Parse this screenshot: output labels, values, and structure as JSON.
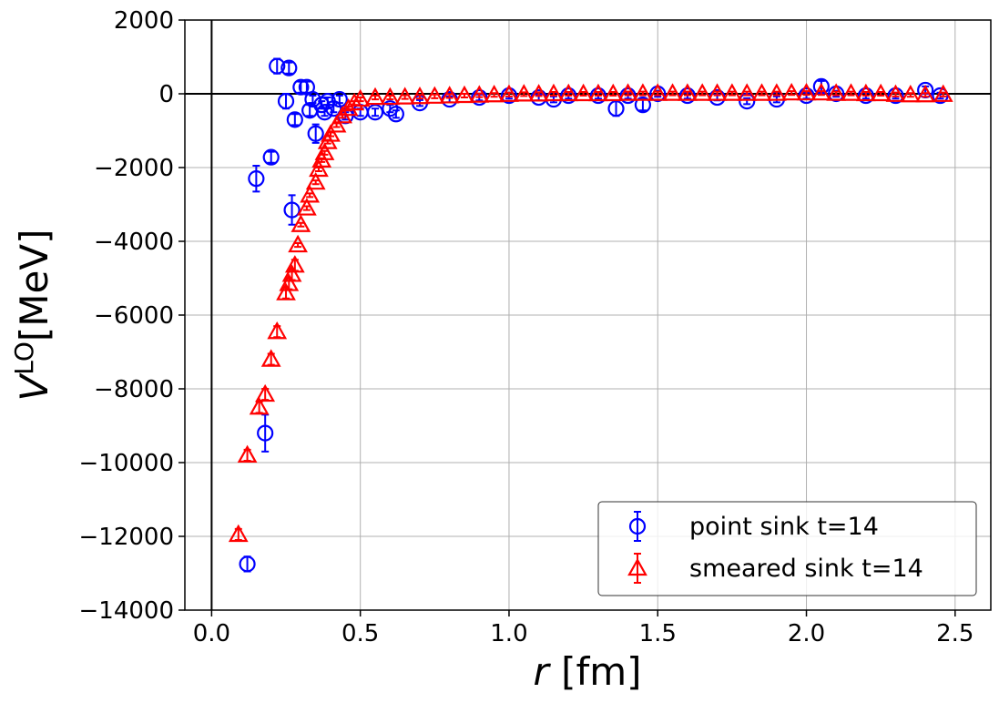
{
  "chart_data": {
    "type": "errorbar_scatter",
    "xlabel": {
      "symbol": "r",
      "unit": "[fm]"
    },
    "ylabel": {
      "symbol": "V",
      "superscript": "LO",
      "unit": "[MeV]"
    },
    "xlim": [
      -0.09,
      2.62
    ],
    "ylim": [
      -14000,
      2000
    ],
    "xticks": [
      {
        "value": 0,
        "label": "0.0"
      },
      0.5,
      {
        "value": 1,
        "label": "1.0"
      },
      1.5,
      {
        "value": 2,
        "label": "2.0"
      },
      2.5
    ],
    "yticks": [
      {
        "value": -14000,
        "label": "−14000"
      },
      {
        "value": -12000,
        "label": "−12000"
      },
      {
        "value": -10000,
        "label": "−10000"
      },
      {
        "value": -8000,
        "label": "−8000"
      },
      {
        "value": -6000,
        "label": "−6000"
      },
      {
        "value": -4000,
        "label": "−4000"
      },
      {
        "value": -2000,
        "label": "−2000"
      },
      0,
      2000
    ],
    "grid": true,
    "zero_lines": true,
    "legend": "lower right",
    "series": [
      {
        "name": "point sink t=14",
        "color": "#0000ff",
        "marker": "circle",
        "x": [
          0.12,
          0.15,
          0.18,
          0.2,
          0.22,
          0.25,
          0.26,
          0.27,
          0.28,
          0.3,
          0.32,
          0.33,
          0.34,
          0.35,
          0.37,
          0.38,
          0.39,
          0.41,
          0.43,
          0.45,
          0.5,
          0.55,
          0.6,
          0.62,
          0.7,
          0.8,
          0.9,
          1.0,
          1.1,
          1.15,
          1.2,
          1.3,
          1.36,
          1.4,
          1.45,
          1.5,
          1.6,
          1.7,
          1.8,
          1.9,
          2.0,
          2.05,
          2.1,
          2.2,
          2.3,
          2.4,
          2.45
        ],
        "values": [
          -12750,
          -2300,
          -9200,
          -1720,
          750,
          -200,
          700,
          -3150,
          -700,
          180,
          180,
          -450,
          -150,
          -1080,
          -300,
          -500,
          -200,
          -400,
          -150,
          -600,
          -500,
          -500,
          -400,
          -550,
          -250,
          -150,
          -100,
          -50,
          -100,
          -150,
          -50,
          -50,
          -400,
          -50,
          -300,
          0,
          -50,
          -100,
          -200,
          -150,
          -50,
          200,
          0,
          -50,
          -50,
          100,
          -50
        ],
        "errors": [
          200,
          350,
          500,
          150,
          200,
          200,
          150,
          400,
          150,
          150,
          150,
          150,
          100,
          250,
          100,
          100,
          100,
          100,
          100,
          100,
          100,
          100,
          100,
          100,
          80,
          80,
          80,
          80,
          80,
          80,
          80,
          80,
          200,
          80,
          150,
          80,
          80,
          80,
          80,
          80,
          80,
          150,
          80,
          80,
          80,
          100,
          80
        ]
      },
      {
        "name": "smeared sink t=14",
        "color": "#ff0000",
        "marker": "triangle",
        "x": [
          0.09,
          0.12,
          0.16,
          0.18,
          0.2,
          0.22,
          0.25,
          0.26,
          0.27,
          0.28,
          0.29,
          0.3,
          0.32,
          0.33,
          0.35,
          0.36,
          0.37,
          0.38,
          0.39,
          0.4,
          0.42,
          0.44,
          0.46,
          0.48,
          0.5,
          0.55,
          0.6,
          0.65,
          0.7,
          0.75,
          0.8,
          0.85,
          0.9,
          0.95,
          1.0,
          1.05,
          1.1,
          1.15,
          1.2,
          1.25,
          1.3,
          1.35,
          1.4,
          1.45,
          1.5,
          1.55,
          1.6,
          1.65,
          1.7,
          1.75,
          1.8,
          1.85,
          1.9,
          1.95,
          2.0,
          2.05,
          2.1,
          2.15,
          2.2,
          2.25,
          2.3,
          2.35,
          2.4,
          2.46
        ],
        "values": [
          -11950,
          -9800,
          -8500,
          -8150,
          -7200,
          -6450,
          -5400,
          -5150,
          -4900,
          -4650,
          -4100,
          -3550,
          -3100,
          -2750,
          -2400,
          -2050,
          -1800,
          -1600,
          -1300,
          -1100,
          -850,
          -600,
          -400,
          -250,
          -150,
          -100,
          -100,
          -90,
          -80,
          -70,
          -60,
          -50,
          -40,
          -30,
          -20,
          -10,
          -10,
          0,
          0,
          0,
          0,
          0,
          10,
          10,
          10,
          10,
          10,
          10,
          10,
          10,
          10,
          10,
          10,
          20,
          20,
          20,
          10,
          10,
          0,
          0,
          -20,
          -30,
          -30,
          -20
        ],
        "errors": [
          150,
          150,
          150,
          150,
          150,
          150,
          150,
          150,
          150,
          150,
          50,
          50,
          50,
          50,
          50,
          50,
          50,
          50,
          50,
          50,
          50,
          50,
          50,
          50,
          50,
          50,
          50,
          50,
          50,
          50,
          50,
          50,
          50,
          50,
          50,
          50,
          50,
          50,
          50,
          50,
          50,
          50,
          50,
          50,
          50,
          50,
          50,
          50,
          50,
          50,
          50,
          50,
          50,
          50,
          50,
          50,
          50,
          50,
          50,
          50,
          50,
          50,
          50,
          50
        ]
      }
    ]
  }
}
